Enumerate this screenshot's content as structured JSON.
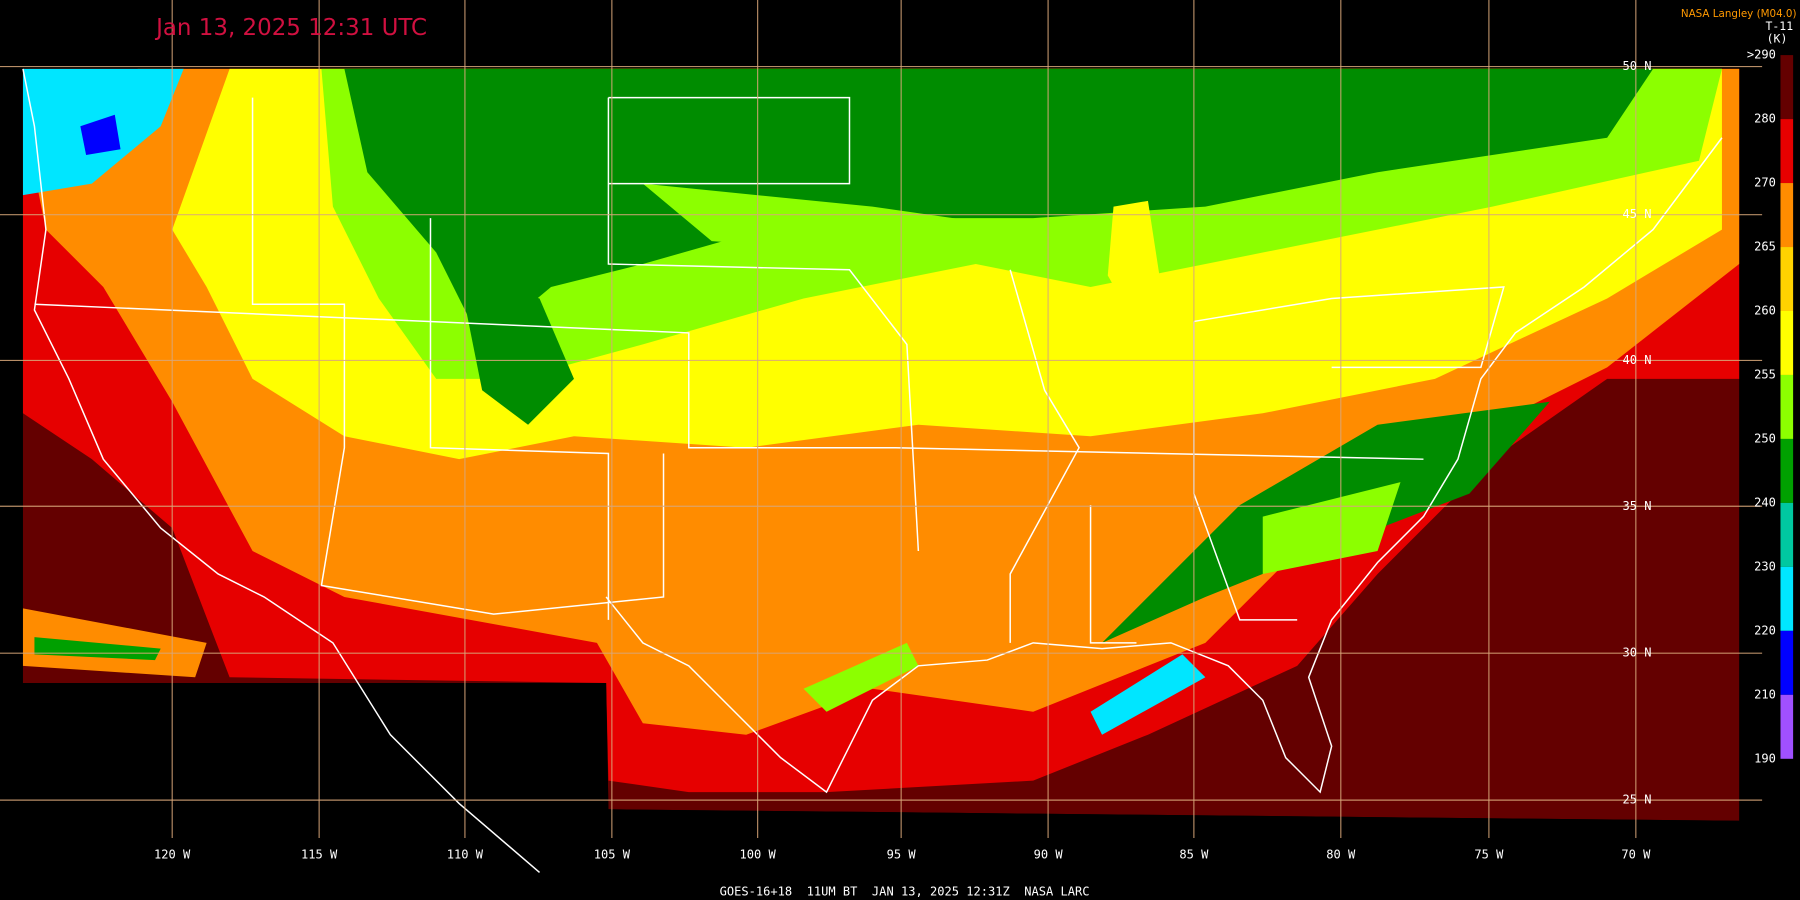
{
  "header": {
    "title": "Jan 13, 2025 12:31 UTC",
    "credit": "NASA Langley (M04.0)",
    "product": "T-11"
  },
  "map": {
    "latitude_labels": [
      "50 N",
      "45 N",
      "40 N",
      "35 N",
      "30 N",
      "25 N"
    ],
    "longitude_labels": [
      "120 W",
      "115 W",
      "110 W",
      "105 W",
      "100 W",
      "95 W",
      "90 W",
      "85 W",
      "80 W",
      "75 W",
      "70 W"
    ]
  },
  "colorbar": {
    "unit": "(K)",
    "ticks": [
      {
        "value": 290,
        "label": ">290"
      },
      280,
      270,
      265,
      260,
      255,
      250,
      240,
      230,
      220,
      210,
      190
    ],
    "colors": [
      "#640000",
      "#e60000",
      "#ff8c00",
      "#ffd200",
      "#ffff00",
      "#8cff00",
      "#00a000",
      "#00c8a0",
      "#00e6ff",
      "#0000ff",
      "#a050ff"
    ]
  },
  "footer": "GOES-16+18  11UM BT  JAN 13, 2025 12:31Z  NASA LARC"
}
